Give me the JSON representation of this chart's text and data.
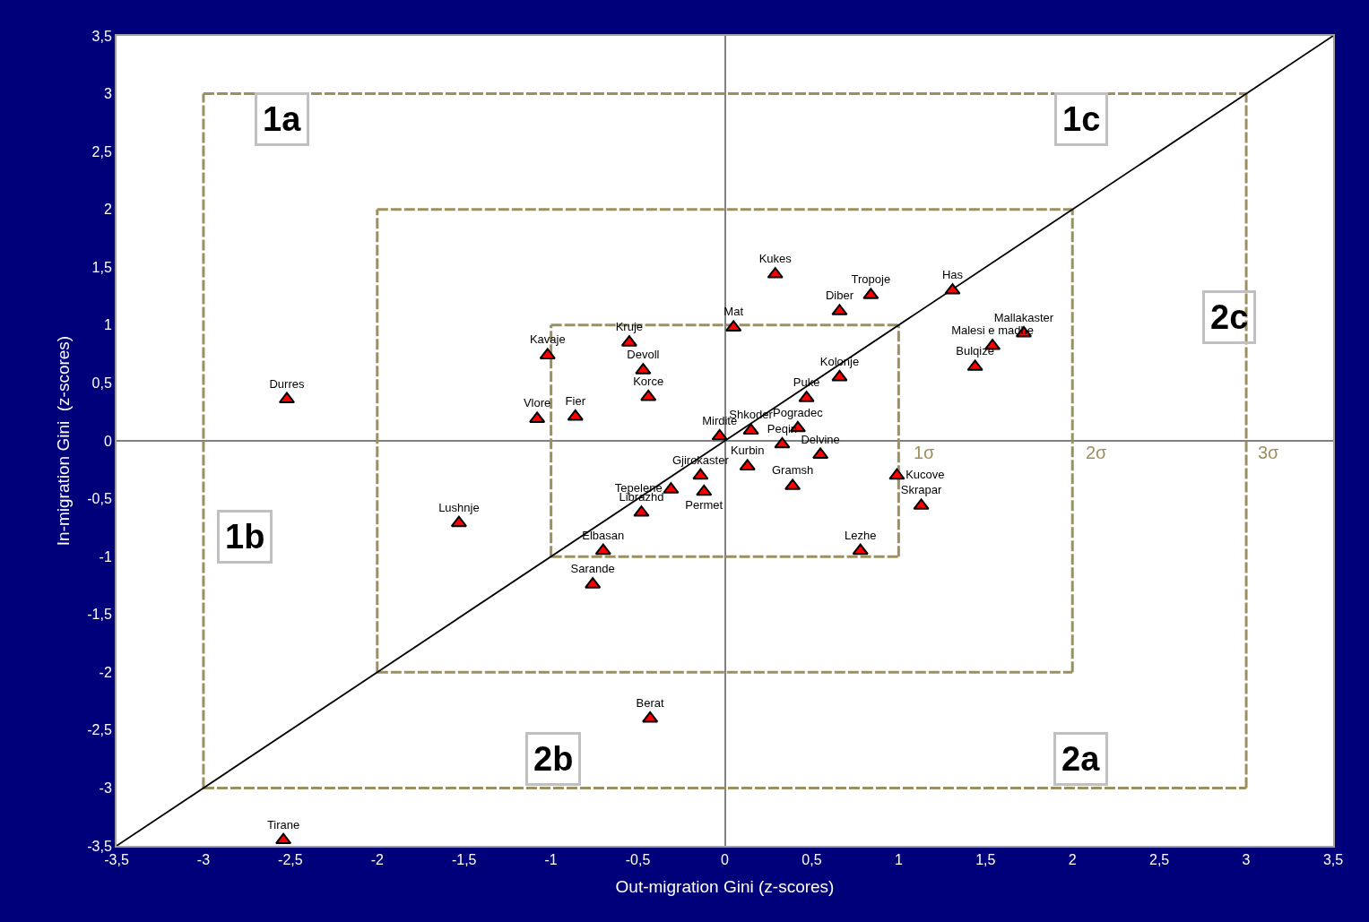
{
  "chart_data": {
    "type": "scatter",
    "xlabel": "Out-migration Gini (z-scores)",
    "ylabel": "In-migration Gini  (z-scores)",
    "xlim": [
      -3.5,
      3.5
    ],
    "ylim": [
      -3.5,
      3.5
    ],
    "xticks": [
      {
        "value": -3.5,
        "label": "-3,5"
      },
      -3,
      {
        "value": -2.5,
        "label": "-2,5"
      },
      -2,
      {
        "value": -1.5,
        "label": "-1,5"
      },
      -1,
      {
        "value": -0.5,
        "label": "-0,5"
      },
      0,
      {
        "value": 0.5,
        "label": "0,5"
      },
      1,
      {
        "value": 1.5,
        "label": "1,5"
      },
      2,
      {
        "value": 2.5,
        "label": "2,5"
      },
      3,
      {
        "value": 3.5,
        "label": "3,5"
      }
    ],
    "yticks": [
      {
        "value": -3.5,
        "label": "-3,5"
      },
      -3,
      {
        "value": -2.5,
        "label": "-2,5"
      },
      -2,
      {
        "value": -1.5,
        "label": "-1,5"
      },
      -1,
      {
        "value": -0.5,
        "label": "-0,5"
      },
      0,
      {
        "value": 0.5,
        "label": "0,5"
      },
      1,
      {
        "value": 1.5,
        "label": "1,5"
      },
      2,
      {
        "value": 2.5,
        "label": "2,5"
      },
      3,
      {
        "value": 3.5,
        "label": "3,5"
      }
    ],
    "series": [
      {
        "type": "line",
        "color": "#9c9060",
        "line_style": "dashed",
        "marker": "none",
        "x": [
          -1,
          1
        ],
        "values": [
          -1,
          -1
        ]
      },
      {
        "type": "line",
        "color": "#9c9060",
        "line_style": "dashed",
        "marker": "none",
        "x": [
          -1,
          1
        ],
        "values": [
          1,
          1
        ]
      },
      {
        "type": "line",
        "color": "#9c9060",
        "line_style": "dashed",
        "marker": "none",
        "x": [
          -1,
          -1
        ],
        "values": [
          -1,
          1
        ]
      },
      {
        "type": "line",
        "color": "#9c9060",
        "line_style": "dashed",
        "marker": "none",
        "x": [
          1,
          1
        ],
        "values": [
          -1,
          1
        ]
      },
      {
        "type": "line",
        "color": "#9c9060",
        "line_style": "dashed",
        "marker": "none",
        "x": [
          -2,
          2
        ],
        "values": [
          -2,
          -2
        ]
      },
      {
        "type": "line",
        "color": "#9c9060",
        "line_style": "dashed",
        "marker": "none",
        "x": [
          -2,
          2
        ],
        "values": [
          2,
          2
        ]
      },
      {
        "type": "line",
        "color": "#9c9060",
        "line_style": "dashed",
        "marker": "none",
        "x": [
          -2,
          -2
        ],
        "values": [
          -2,
          2
        ]
      },
      {
        "type": "line",
        "color": "#9c9060",
        "line_style": "dashed",
        "marker": "none",
        "x": [
          2,
          2
        ],
        "values": [
          -2,
          2
        ]
      },
      {
        "type": "line",
        "color": "#9c9060",
        "line_style": "dashed",
        "marker": "none",
        "x": [
          -3,
          3
        ],
        "values": [
          -3,
          -3
        ]
      },
      {
        "type": "line",
        "color": "#9c9060",
        "line_style": "dashed",
        "marker": "none",
        "x": [
          -3,
          3
        ],
        "values": [
          3,
          3
        ]
      },
      {
        "type": "line",
        "color": "#9c9060",
        "line_style": "dashed",
        "marker": "none",
        "x": [
          -3,
          -3
        ],
        "values": [
          -3,
          3
        ]
      },
      {
        "type": "line",
        "color": "#9c9060",
        "line_style": "dashed",
        "marker": "none",
        "x": [
          3,
          3
        ],
        "values": [
          -3,
          3
        ]
      },
      {
        "type": "line",
        "color": "#000000",
        "line_style": "solid",
        "marker": "none",
        "x": [
          -3.5,
          3.5
        ],
        "values": [
          -3.5,
          3.5
        ]
      },
      {
        "color": "#ff0000",
        "marker": "triangle",
        "x": [
          -2.52,
          -2.54,
          -1.53,
          -1.08,
          -1.02,
          -0.86,
          -0.55,
          -0.47,
          -0.44,
          -0.31,
          -0.14,
          -0.12,
          -0.48,
          -0.7,
          -0.76,
          -0.43,
          -0.03,
          0.15,
          0.33,
          0.47,
          0.42,
          0.55,
          0.13,
          0.39,
          0.66,
          0.99,
          1.13,
          0.78,
          0.05,
          0.29,
          0.66,
          0.84,
          1.31,
          1.54,
          1.72,
          1.44
        ],
        "values": [
          0.36,
          -3.45,
          -0.71,
          0.19,
          0.74,
          0.21,
          0.85,
          0.61,
          0.38,
          -0.42,
          -0.3,
          -0.44,
          -0.62,
          -0.95,
          -1.24,
          -2.4,
          0.04,
          0.09,
          -0.03,
          0.37,
          0.11,
          -0.12,
          -0.22,
          -0.39,
          0.55,
          -0.3,
          -0.56,
          -0.95,
          0.98,
          1.44,
          1.12,
          1.26,
          1.3,
          0.82,
          0.93,
          0.64
        ],
        "value_labels": [
          "Durres",
          "Tirane",
          "Lushnje",
          "Vlore",
          "Kavaje",
          "Fier",
          "Kruje",
          "Devoll",
          "Korce",
          "Tepelene",
          "Gjirokaster",
          "Permet",
          "Librazhd",
          "Elbasan",
          "Sarande",
          "Berat",
          "Mirdite",
          "Shkoder",
          "Peqin",
          "Puke",
          "Pogradec",
          "Delvine",
          "Kurbin",
          "Gramsh",
          "Kolonje",
          "Kucove",
          "Skrapar",
          "Lezhe",
          "Mat",
          "Kukes",
          "Diber",
          "Tropoje",
          "Has",
          "Malesi e madhe",
          "Mallakaster",
          "Bulqize"
        ]
      }
    ],
    "annotations": [
      "1a",
      "1c",
      "1b",
      "2c",
      "2b",
      "2a",
      "1σ",
      "2σ",
      "3σ"
    ]
  }
}
